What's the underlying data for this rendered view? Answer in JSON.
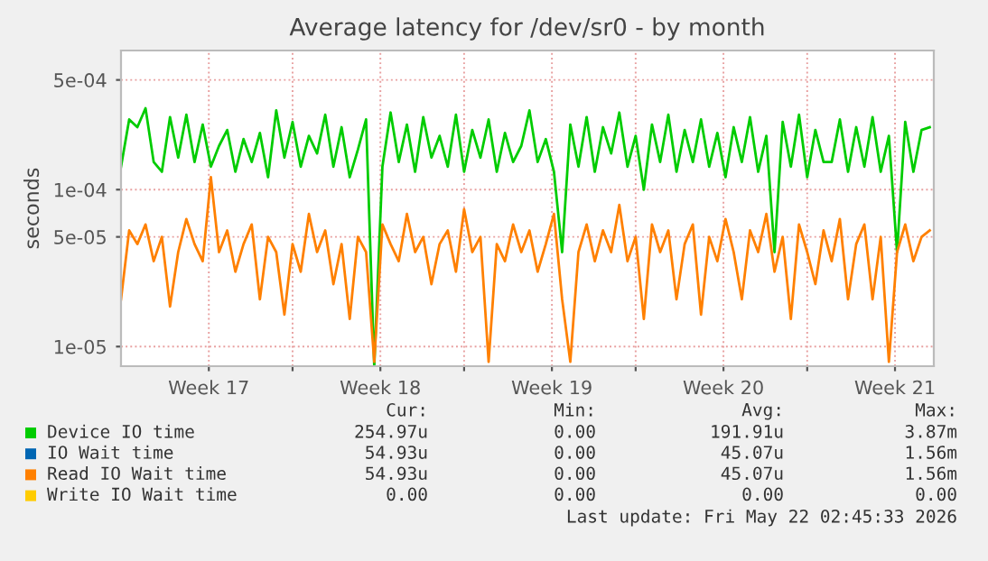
{
  "chart_data": {
    "type": "line",
    "title": "Average latency for /dev/sr0 - by month",
    "ylabel": "seconds",
    "x": [
      "2026-04-20T00:00",
      "2026-04-20T08:00",
      "2026-04-20T16:00",
      "2026-04-21T00:00",
      "2026-04-21T08:00",
      "2026-04-21T16:00",
      "2026-04-22T00:00",
      "2026-04-22T08:00",
      "2026-04-22T16:00",
      "2026-04-23T00:00",
      "2026-04-23T08:00",
      "2026-04-23T16:00",
      "2026-04-24T00:00",
      "2026-04-24T08:00",
      "2026-04-24T16:00",
      "2026-04-25T00:00",
      "2026-04-25T08:00",
      "2026-04-25T16:00",
      "2026-04-26T00:00",
      "2026-04-26T08:00",
      "2026-04-26T16:00",
      "2026-04-27T00:00",
      "2026-04-27T08:00",
      "2026-04-27T16:00",
      "2026-04-28T00:00",
      "2026-04-28T08:00",
      "2026-04-28T16:00",
      "2026-04-29T00:00",
      "2026-04-29T08:00",
      "2026-04-29T16:00",
      "2026-04-30T00:00",
      "2026-04-30T08:00",
      "2026-04-30T16:00",
      "2026-05-01T00:00",
      "2026-05-01T08:00",
      "2026-05-01T16:00",
      "2026-05-02T00:00",
      "2026-05-02T08:00",
      "2026-05-02T16:00",
      "2026-05-03T00:00",
      "2026-05-03T08:00",
      "2026-05-03T16:00",
      "2026-05-04T00:00",
      "2026-05-04T08:00",
      "2026-05-04T16:00",
      "2026-05-05T00:00",
      "2026-05-05T08:00",
      "2026-05-05T16:00",
      "2026-05-06T00:00",
      "2026-05-06T08:00",
      "2026-05-06T16:00",
      "2026-05-07T00:00",
      "2026-05-07T08:00",
      "2026-05-07T16:00",
      "2026-05-08T00:00",
      "2026-05-08T08:00",
      "2026-05-08T16:00",
      "2026-05-09T00:00",
      "2026-05-09T08:00",
      "2026-05-09T16:00",
      "2026-05-10T00:00",
      "2026-05-10T08:00",
      "2026-05-10T16:00",
      "2026-05-11T00:00",
      "2026-05-11T08:00",
      "2026-05-11T16:00",
      "2026-05-12T00:00",
      "2026-05-12T08:00",
      "2026-05-12T16:00",
      "2026-05-13T00:00",
      "2026-05-13T08:00",
      "2026-05-13T16:00",
      "2026-05-14T00:00",
      "2026-05-14T08:00",
      "2026-05-14T16:00",
      "2026-05-15T00:00",
      "2026-05-15T08:00",
      "2026-05-15T16:00",
      "2026-05-16T00:00",
      "2026-05-16T08:00",
      "2026-05-16T16:00",
      "2026-05-17T00:00",
      "2026-05-17T08:00",
      "2026-05-17T16:00",
      "2026-05-18T00:00",
      "2026-05-18T08:00",
      "2026-05-18T16:00",
      "2026-05-19T00:00",
      "2026-05-19T08:00",
      "2026-05-19T16:00",
      "2026-05-20T00:00",
      "2026-05-20T08:00",
      "2026-05-20T16:00",
      "2026-05-21T00:00",
      "2026-05-21T08:00",
      "2026-05-21T16:00",
      "2026-05-22T00:00",
      "2026-05-22T08:00",
      "2026-05-22T16:00",
      "2026-05-23T00:00"
    ],
    "series": [
      {
        "name": "Device IO time",
        "color": "#00cc00",
        "values": [
          0.00014,
          0.00028,
          0.00025,
          0.00033,
          0.00015,
          0.00013,
          0.00029,
          0.00016,
          0.0003,
          0.00015,
          0.00026,
          0.00014,
          0.00019,
          0.00024,
          0.00013,
          0.00021,
          0.00015,
          0.00023,
          0.00012,
          0.00032,
          0.00016,
          0.00027,
          0.00014,
          0.00022,
          0.00017,
          0.0003,
          0.00014,
          0.00025,
          0.00012,
          0.00018,
          0.00028,
          7.5e-06,
          0.00014,
          0.00031,
          0.00015,
          0.00026,
          0.00013,
          0.00029,
          0.00016,
          0.00022,
          0.00014,
          0.0003,
          0.00013,
          0.00024,
          0.00016,
          0.00028,
          0.00013,
          0.00023,
          0.00015,
          0.00019,
          0.00032,
          0.00015,
          0.00021,
          0.00013,
          4e-05,
          0.00026,
          0.00014,
          0.00029,
          0.00013,
          0.00025,
          0.00017,
          0.00031,
          0.00014,
          0.00022,
          0.0001,
          0.00026,
          0.00015,
          0.0003,
          0.00013,
          0.00024,
          0.00015,
          0.00028,
          0.00014,
          0.00023,
          0.00012,
          0.00025,
          0.00015,
          0.00029,
          0.00013,
          0.00022,
          4e-05,
          0.00027,
          0.00014,
          0.0003,
          0.00012,
          0.00024,
          0.00015,
          0.00015,
          0.00028,
          0.00013,
          0.00025,
          0.00014,
          0.00029,
          0.00013,
          0.00022,
          4e-05,
          0.00027,
          0.00013,
          0.00024,
          0.00025
        ]
      },
      {
        "name": "IO Wait time",
        "color": "#0066b3",
        "values": [
          null,
          null,
          null,
          null,
          null,
          null,
          null,
          null,
          null,
          null,
          null,
          null,
          null,
          null,
          null,
          null,
          null,
          null,
          null,
          null,
          null,
          null,
          null,
          null,
          null,
          null,
          null,
          null,
          null,
          null,
          null,
          null,
          null,
          null,
          null,
          null,
          null,
          null,
          null,
          null,
          null,
          null,
          null,
          null,
          null,
          null,
          null,
          null,
          null,
          null,
          null,
          null,
          null,
          null,
          null,
          null,
          null,
          null,
          null,
          null,
          null,
          null,
          null,
          null,
          null,
          null,
          null,
          null,
          null,
          null,
          null,
          null,
          null,
          null,
          null,
          null,
          null,
          null,
          null,
          null,
          null,
          null,
          null,
          null,
          null,
          null,
          null,
          null,
          null,
          null,
          null,
          null,
          null,
          null,
          null,
          null,
          null,
          null,
          null,
          null
        ]
      },
      {
        "name": "Read IO Wait time",
        "color": "#ff8000",
        "values": [
          2e-05,
          5.5e-05,
          4.5e-05,
          6e-05,
          3.5e-05,
          5e-05,
          1.8e-05,
          4e-05,
          6.5e-05,
          4.5e-05,
          3.5e-05,
          0.00012,
          4e-05,
          5.5e-05,
          3e-05,
          4.5e-05,
          6e-05,
          2e-05,
          5e-05,
          4e-05,
          1.6e-05,
          4.5e-05,
          3e-05,
          7e-05,
          4e-05,
          5.5e-05,
          2.5e-05,
          4.5e-05,
          1.5e-05,
          5e-05,
          4e-05,
          8e-06,
          6e-05,
          4.5e-05,
          3.5e-05,
          7e-05,
          4e-05,
          5e-05,
          2.5e-05,
          4.5e-05,
          5.5e-05,
          3e-05,
          7.5e-05,
          4e-05,
          5e-05,
          8e-06,
          4.5e-05,
          3.5e-05,
          6e-05,
          4e-05,
          5.5e-05,
          3e-05,
          4.5e-05,
          7e-05,
          2e-05,
          8e-06,
          4e-05,
          6e-05,
          3.5e-05,
          5.5e-05,
          4e-05,
          8e-05,
          3.5e-05,
          5e-05,
          1.5e-05,
          6e-05,
          4e-05,
          5.5e-05,
          2e-05,
          4.5e-05,
          6e-05,
          1.6e-05,
          5e-05,
          3.5e-05,
          6.5e-05,
          4e-05,
          2e-05,
          5.5e-05,
          4e-05,
          7e-05,
          3e-05,
          5e-05,
          1.5e-05,
          6e-05,
          4e-05,
          2.5e-05,
          5.5e-05,
          3.5e-05,
          6.5e-05,
          2e-05,
          4.5e-05,
          6e-05,
          2e-05,
          5e-05,
          8e-06,
          4e-05,
          6e-05,
          3.5e-05,
          5e-05,
          5.5e-05
        ]
      },
      {
        "name": "Write IO Wait time",
        "color": "#ffcc00",
        "values": [
          null,
          null,
          null,
          null,
          null,
          null,
          null,
          null,
          null,
          null,
          null,
          null,
          null,
          null,
          null,
          null,
          null,
          null,
          null,
          null,
          null,
          null,
          null,
          null,
          null,
          null,
          null,
          null,
          null,
          null,
          null,
          null,
          null,
          null,
          null,
          null,
          null,
          null,
          null,
          null,
          null,
          null,
          null,
          null,
          null,
          null,
          null,
          null,
          null,
          null,
          null,
          null,
          null,
          null,
          null,
          null,
          null,
          null,
          null,
          null,
          null,
          null,
          null,
          null,
          null,
          null,
          null,
          null,
          null,
          null,
          null,
          null,
          null,
          null,
          null,
          null,
          null,
          null,
          null,
          null,
          null,
          null,
          null,
          null,
          null,
          null,
          null,
          null,
          null,
          null,
          null,
          null,
          null,
          null,
          null,
          null,
          null,
          null,
          null,
          null
        ]
      }
    ],
    "log": "y",
    "xlim": [
      "2026-04-20T00:00",
      "2026-05-23T04:00"
    ],
    "ylim": [
      7.5e-06,
      0.00077
    ],
    "yticks": [
      {
        "value": 1e-05,
        "label": "1e-05"
      },
      {
        "value": 5e-05,
        "label": "5e-05"
      },
      {
        "value": 0.0001,
        "label": "1e-04"
      },
      {
        "value": 0.0005,
        "label": "5e-04"
      }
    ],
    "xticks": [
      {
        "value": "2026-04-23T14:00",
        "label": "Week 17"
      },
      {
        "value": "2026-04-27",
        "label": null
      },
      {
        "value": "2026-04-30T14:00",
        "label": "Week 18"
      },
      {
        "value": "2026-05-04",
        "label": null
      },
      {
        "value": "2026-05-07T14:00",
        "label": "Week 19"
      },
      {
        "value": "2026-05-11",
        "label": null
      },
      {
        "value": "2026-05-14T14:00",
        "label": "Week 20"
      },
      {
        "value": "2026-05-18",
        "label": null
      },
      {
        "value": "2026-05-21T14:00",
        "label": "Week 21"
      }
    ],
    "grid": true,
    "legend": "bottom",
    "marker": "none",
    "line_style": "solid",
    "annotations": [
      "Cur:",
      "Min:",
      "Avg:",
      "Max:",
      "254.97u",
      "0.00",
      "191.91u",
      "3.87m",
      "54.93u",
      "0.00",
      "45.07u",
      "1.56m",
      "54.93u",
      "0.00",
      "45.07u",
      "1.56m",
      "0.00",
      "0.00",
      "0.00",
      "0.00",
      "Last update: Fri May 22 02:45:33 2026"
    ]
  }
}
